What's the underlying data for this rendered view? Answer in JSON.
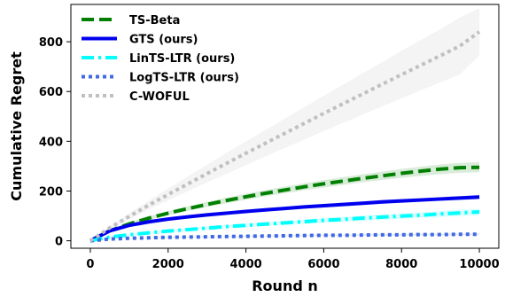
{
  "chart_data": {
    "type": "line",
    "xlabel": "Round n",
    "ylabel": "Cumulative Regret",
    "xlim": [
      -500,
      10500
    ],
    "ylim": [
      -30,
      950
    ],
    "xticks": [
      0,
      2000,
      4000,
      6000,
      8000,
      10000
    ],
    "yticks": [
      0,
      200,
      400,
      600,
      800
    ],
    "grid": false,
    "legend_position": "top-left",
    "x": [
      0,
      500,
      1000,
      1500,
      2000,
      2500,
      3000,
      3500,
      4000,
      4500,
      5000,
      5500,
      6000,
      6500,
      7000,
      7500,
      8000,
      8500,
      9000,
      9500,
      10000
    ],
    "series": [
      {
        "name": "TS-Beta",
        "color": "#008000",
        "dash": "long-dash",
        "values": [
          0,
          40,
          68,
          91,
          111,
          129,
          146,
          162,
          177,
          191,
          204,
          217,
          229,
          240,
          251,
          261,
          271,
          280,
          288,
          294,
          295
        ],
        "band_lower": [
          0,
          35,
          62,
          84,
          103,
          120,
          136,
          151,
          165,
          178,
          191,
          203,
          214,
          225,
          235,
          244,
          253,
          261,
          268,
          273,
          276
        ],
        "band_upper": [
          0,
          45,
          74,
          98,
          119,
          138,
          156,
          173,
          189,
          204,
          218,
          231,
          244,
          256,
          267,
          278,
          289,
          298,
          307,
          313,
          316
        ]
      },
      {
        "name": "GTS (ours)",
        "color": "#0000ee",
        "dash": "solid",
        "values": [
          0,
          40,
          62,
          76,
          87,
          96,
          104,
          111,
          118,
          124,
          130,
          136,
          141,
          146,
          151,
          156,
          160,
          164,
          168,
          172,
          176
        ],
        "band_lower": [
          0,
          37,
          58,
          72,
          83,
          91,
          99,
          106,
          112,
          118,
          124,
          129,
          134,
          139,
          144,
          148,
          152,
          156,
          160,
          164,
          167
        ],
        "band_upper": [
          0,
          43,
          66,
          80,
          91,
          101,
          109,
          116,
          124,
          130,
          136,
          143,
          148,
          153,
          158,
          164,
          168,
          172,
          176,
          180,
          185
        ]
      },
      {
        "name": "LinTS-LTR (ours)",
        "color": "#00ffff",
        "dash": "dash-dot",
        "values": [
          0,
          15,
          24,
          32,
          39,
          45,
          51,
          57,
          62,
          67,
          72,
          77,
          82,
          86,
          91,
          95,
          99,
          103,
          108,
          112,
          116
        ],
        "band_lower": [
          0,
          13,
          21,
          28,
          34,
          40,
          45,
          50,
          55,
          59,
          64,
          68,
          72,
          76,
          80,
          84,
          88,
          92,
          96,
          99,
          103
        ],
        "band_upper": [
          0,
          17,
          27,
          36,
          44,
          50,
          57,
          64,
          69,
          75,
          80,
          86,
          92,
          96,
          102,
          106,
          110,
          114,
          120,
          125,
          129
        ]
      },
      {
        "name": "LogTS-LTR (ours)",
        "color": "#4169e1",
        "dash": "dotted",
        "values": [
          0,
          7,
          10,
          12,
          14,
          15,
          16,
          17,
          18,
          19,
          20,
          21,
          22,
          22,
          23,
          24,
          24,
          25,
          25,
          26,
          26
        ],
        "band_lower": [
          0,
          6,
          9,
          11,
          12,
          13,
          14,
          15,
          16,
          17,
          18,
          19,
          19,
          20,
          20,
          21,
          21,
          22,
          22,
          23,
          23
        ],
        "band_upper": [
          0,
          8,
          11,
          13,
          16,
          17,
          18,
          19,
          20,
          21,
          22,
          23,
          25,
          24,
          26,
          27,
          27,
          28,
          28,
          29,
          29
        ]
      },
      {
        "name": "C-WOFUL",
        "color": "#c0c0c0",
        "dash": "dotted",
        "values": [
          0,
          52,
          98,
          143,
          186,
          228,
          270,
          311,
          352,
          392,
          432,
          472,
          512,
          551,
          590,
          629,
          668,
          706,
          744,
          783,
          840
        ],
        "band_lower": [
          0,
          46,
          86,
          125,
          162,
          198,
          234,
          269,
          304,
          339,
          373,
          407,
          441,
          474,
          507,
          540,
          572,
          605,
          637,
          669,
          745
        ],
        "band_upper": [
          0,
          58,
          110,
          161,
          210,
          258,
          306,
          353,
          400,
          445,
          491,
          537,
          583,
          628,
          673,
          718,
          764,
          807,
          851,
          897,
          935
        ]
      }
    ]
  }
}
